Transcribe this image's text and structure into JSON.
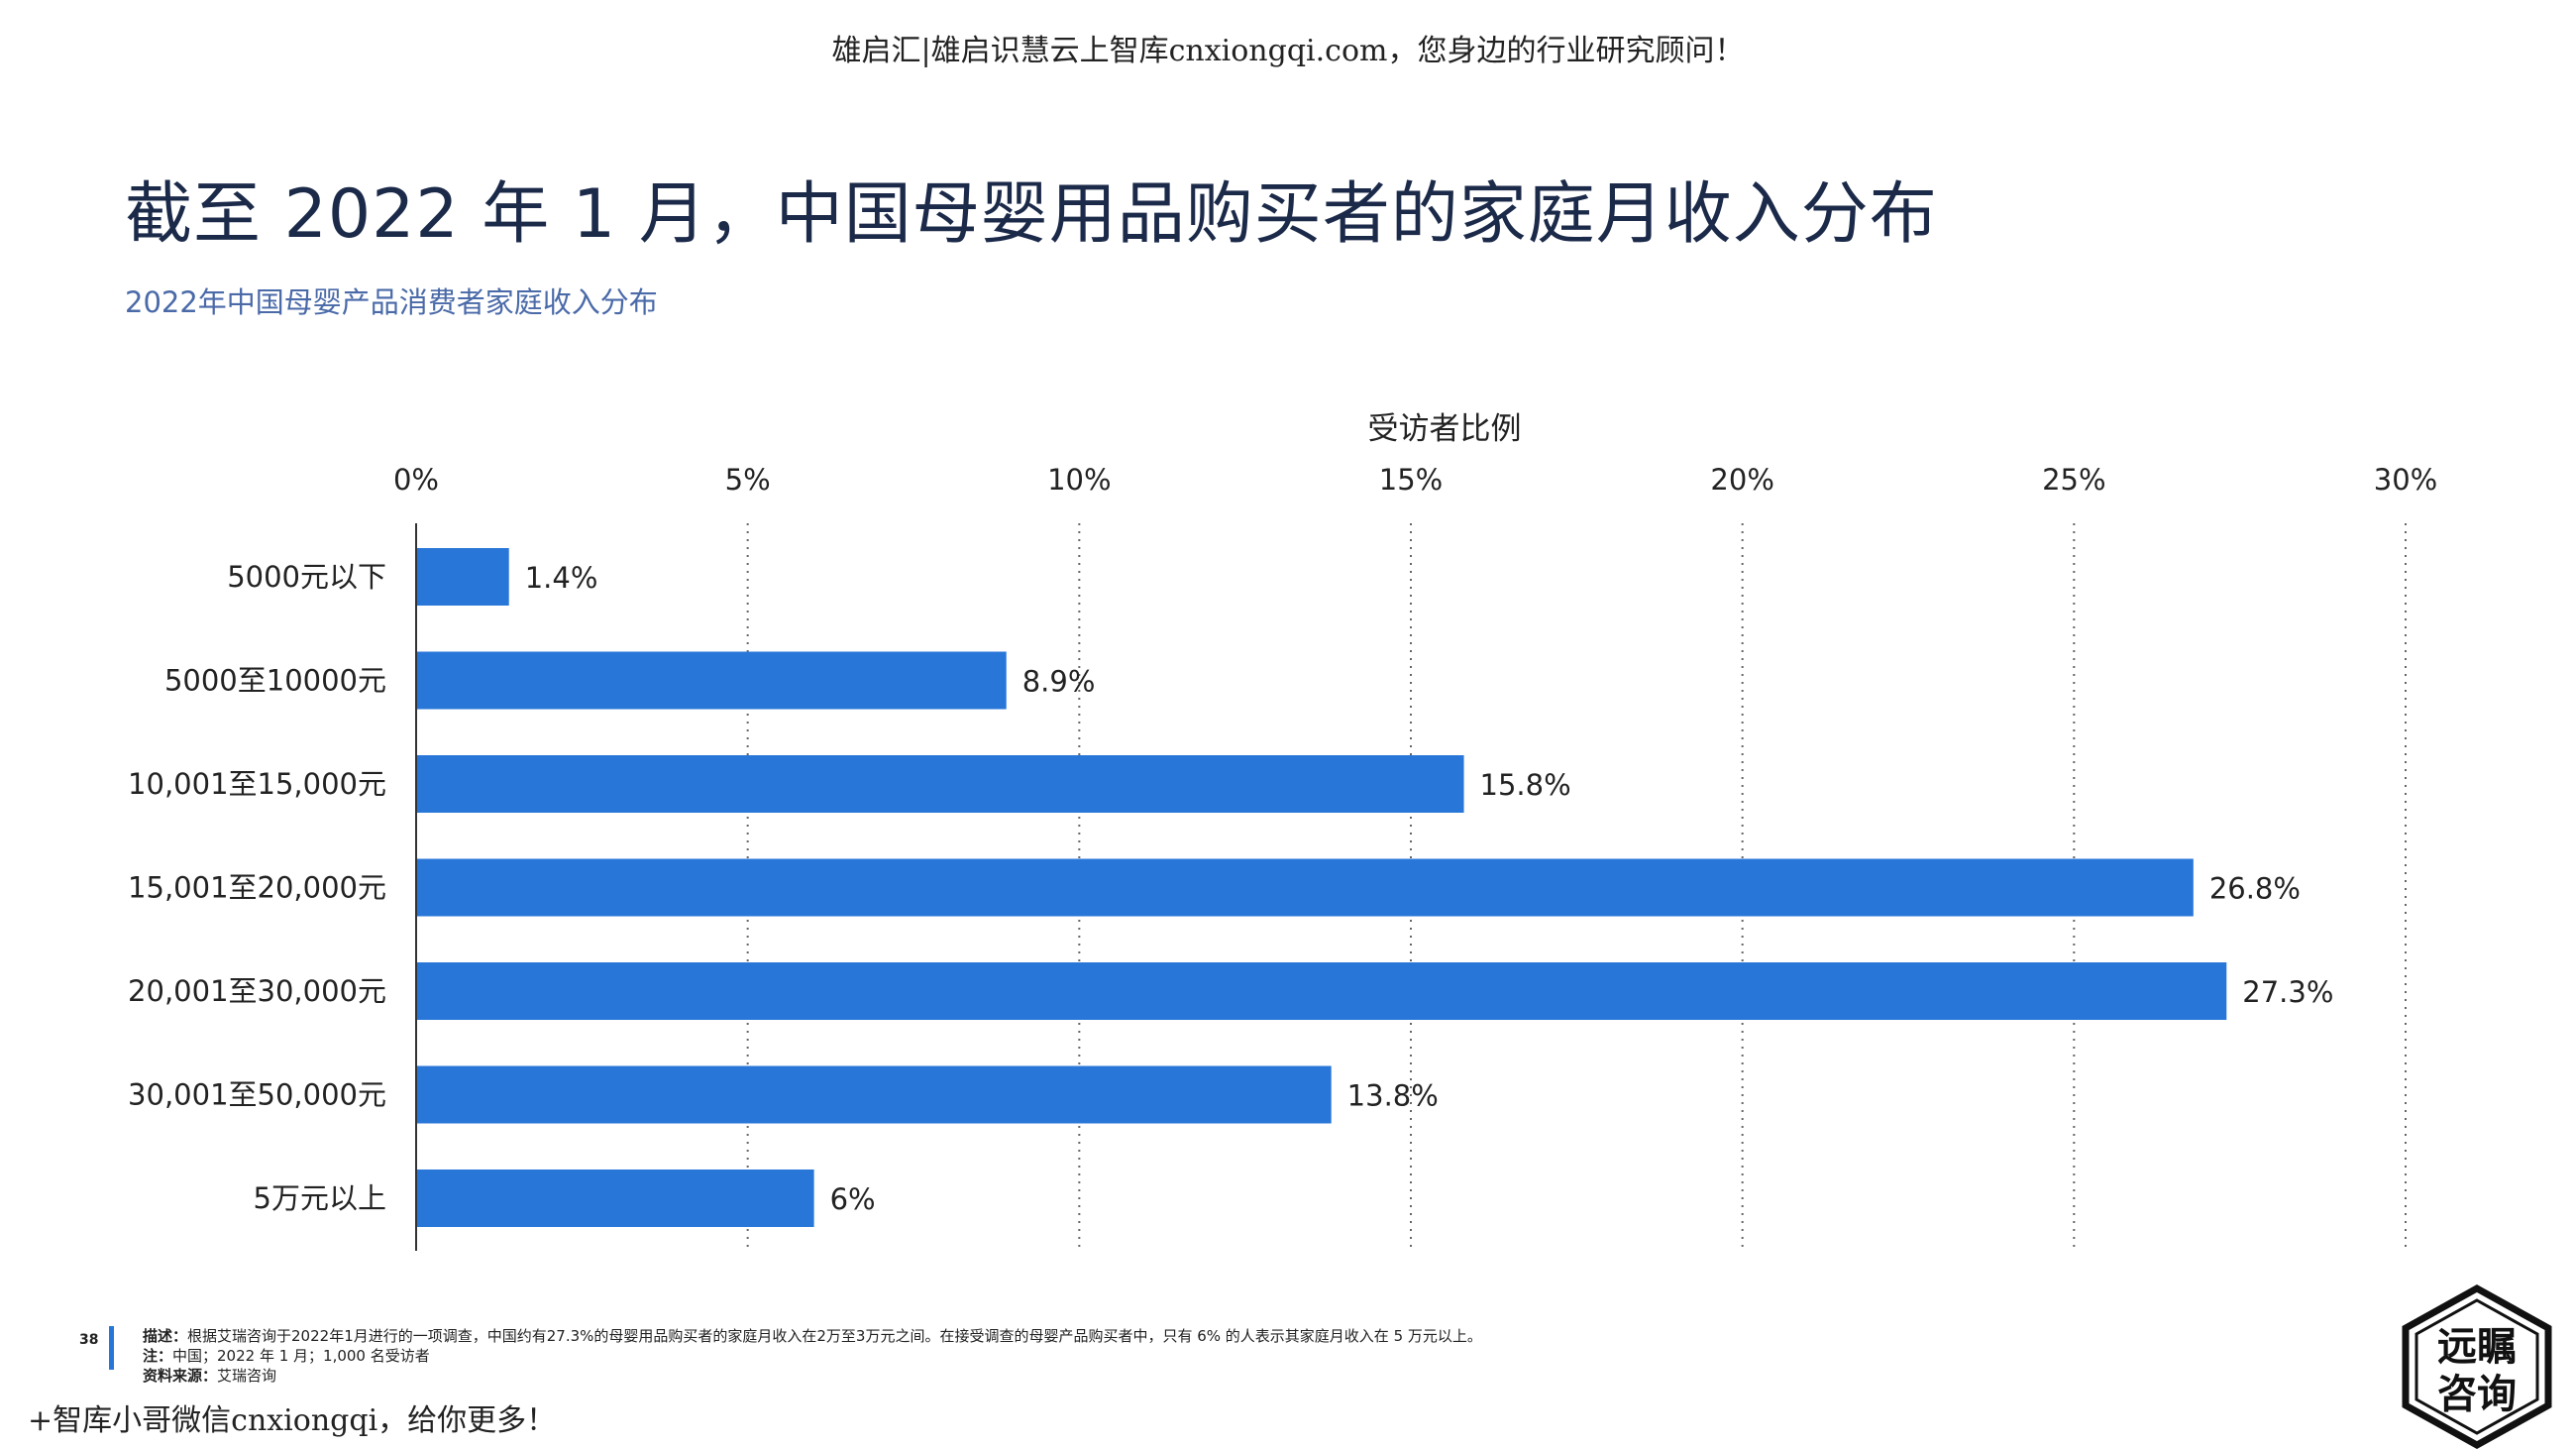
{
  "watermark_top": "雄启汇|雄启识慧云上智库cnxiongqi.com，您身边的行业研究顾问！",
  "title": "截至 2022 年 1 月，中国母婴用品购买者的家庭月收入分布",
  "subtitle": "2022年中国母婴产品消费者家庭收入分布",
  "chart_data": {
    "type": "bar",
    "orientation": "horizontal",
    "xlabel": "受访者比例",
    "xlim": [
      0,
      30
    ],
    "x_ticks": [
      "0%",
      "5%",
      "10%",
      "15%",
      "20%",
      "25%",
      "30%"
    ],
    "x_tick_values": [
      0,
      5,
      10,
      15,
      20,
      25,
      30
    ],
    "categories": [
      "5000元以下",
      "5000至10000元",
      "10,001至15,000元",
      "15,001至20,000元",
      "20,001至30,000元",
      "30,001至50,000元",
      "5万元以上"
    ],
    "values": [
      1.4,
      8.9,
      15.8,
      26.8,
      27.3,
      13.8,
      6
    ],
    "data_labels": [
      "1.4%",
      "8.9%",
      "15.8%",
      "26.8%",
      "27.3%",
      "13.8%",
      "6%"
    ],
    "grid": true,
    "bar_color": "#2876d8"
  },
  "footer": {
    "page_number": "38",
    "description_label": "描述：",
    "description": "根据艾瑞咨询于2022年1月进行的一项调查，中国约有27.3%的母婴用品购买者的家庭月收入在2万至3万元之间。在接受调查的母婴产品购买者中，只有 6% 的人表示其家庭月收入在 5 万元以上。",
    "note_label": "注：",
    "note": "中国；2022 年 1 月；1,000 名受访者",
    "source_label": "资料来源：",
    "source": "艾瑞咨询"
  },
  "watermark_bottom": "+智库小哥微信cnxiongqi，给你更多！",
  "logo": {
    "line1": "远瞩",
    "line2": "咨询"
  }
}
